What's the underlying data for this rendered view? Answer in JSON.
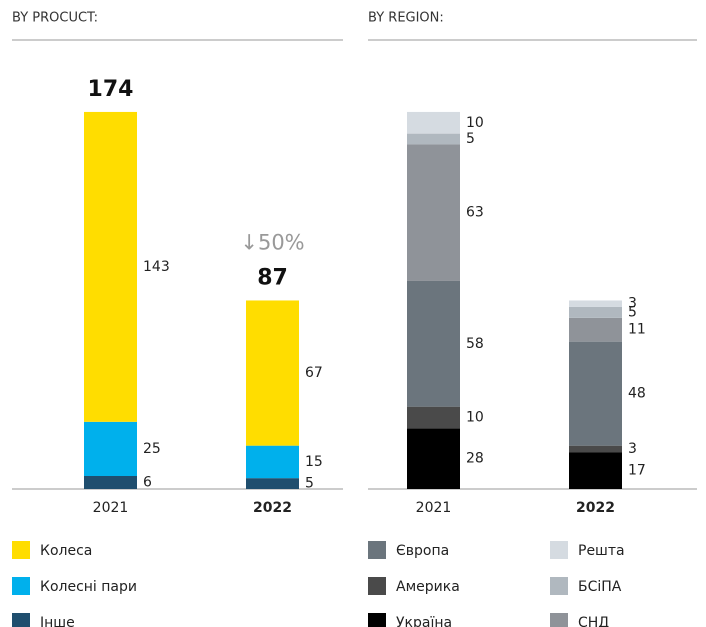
{
  "chart_data": [
    {
      "type": "bar",
      "stacked": true,
      "title": "BY PROCUCT:",
      "categories": [
        "2021",
        "2022"
      ],
      "totals": [
        174,
        87
      ],
      "annotation": "↓50%",
      "series": [
        {
          "name": "Інше",
          "color": "#1f4e6e",
          "values": [
            6,
            5
          ]
        },
        {
          "name": "Колесні пари",
          "color": "#00b0ec",
          "values": [
            25,
            15
          ]
        },
        {
          "name": "Колеса",
          "color": "#ffdd00",
          "values": [
            143,
            67
          ]
        }
      ]
    },
    {
      "type": "bar",
      "stacked": true,
      "title": "BY REGION:",
      "categories": [
        "2021",
        "2022"
      ],
      "series": [
        {
          "name": "Україна",
          "color": "#000000",
          "values": [
            28,
            17
          ]
        },
        {
          "name": "Америка",
          "color": "#4a4a4a",
          "values": [
            10,
            3
          ]
        },
        {
          "name": "Європа",
          "color": "#6b757d",
          "values": [
            58,
            48
          ]
        },
        {
          "name": "СНД",
          "color": "#8f9399",
          "values": [
            63,
            11
          ]
        },
        {
          "name": "БСіПА",
          "color": "#b0b8bf",
          "values": [
            5,
            5
          ]
        },
        {
          "name": "Решта",
          "color": "#d5dbe1",
          "values": [
            10,
            3
          ]
        }
      ]
    }
  ]
}
